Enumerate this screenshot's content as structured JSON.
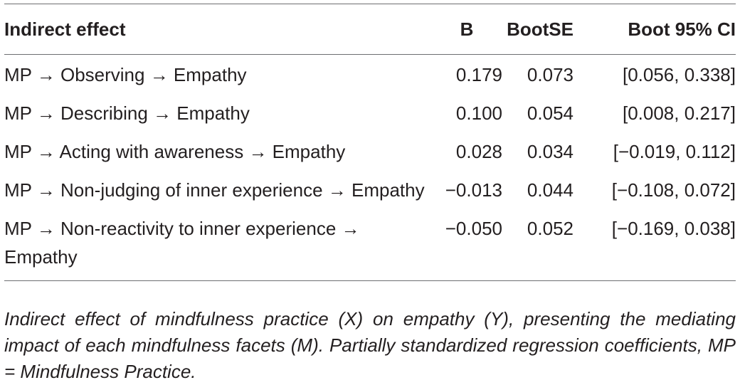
{
  "table": {
    "headers": {
      "effect": "Indirect effect",
      "b": "B",
      "bootse": "BootSE",
      "ci": "Boot 95% CI"
    },
    "rows": [
      {
        "effect": "MP → Observing → Empathy",
        "b": "0.179",
        "bootse": "0.073",
        "ci": "[0.056, 0.338]"
      },
      {
        "effect": "MP → Describing → Empathy",
        "b": "0.100",
        "bootse": "0.054",
        "ci": "[0.008, 0.217]"
      },
      {
        "effect": "MP → Acting with awareness → Empathy",
        "b": "0.028",
        "bootse": "0.034",
        "ci": "[−0.019, 0.112]"
      },
      {
        "effect": "MP → Non-judging of inner experience → Empathy",
        "b": "−0.013",
        "bootse": "0.044",
        "ci": "[−0.108, 0.072]"
      },
      {
        "effect": "MP → Non-reactivity to inner experience → Empathy",
        "b": "−0.050",
        "bootse": "0.052",
        "ci": "[−0.169, 0.038]"
      }
    ]
  },
  "caption": "Indirect effect of mindfulness practice (X) on empathy (Y), presenting the mediating impact of each mindfulness facets (M). Partially standardized regression coefficients, MP = Mindfulness Practice."
}
